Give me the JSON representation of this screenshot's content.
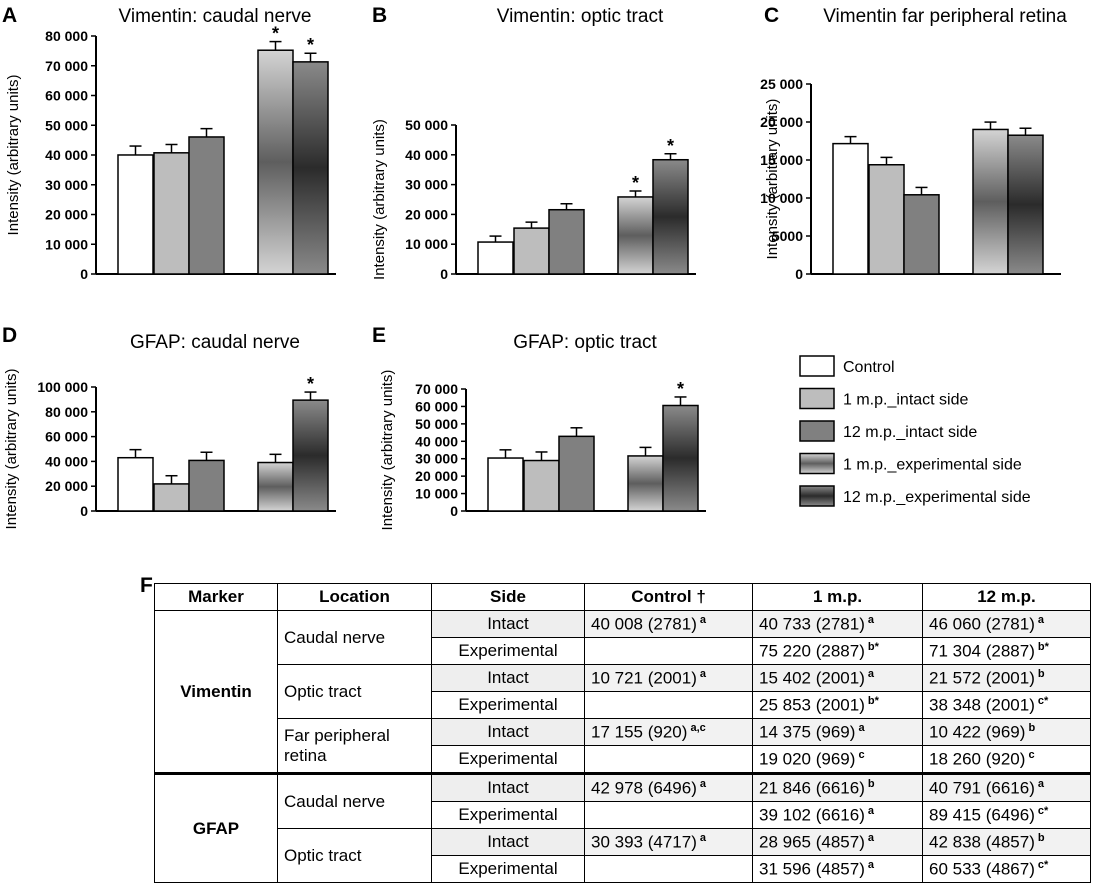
{
  "chart_data": [
    {
      "type": "bar",
      "panel": "A",
      "title": "Vimentin: caudal nerve",
      "ylabel": "Intensity (arbitrary units)",
      "ylim": [
        0,
        80000
      ],
      "yticks": [
        "0",
        "10 000",
        "20 000",
        "30 000",
        "40 000",
        "50 000",
        "60 000",
        "70 000",
        "80 000"
      ],
      "series": [
        {
          "name": "Control",
          "values": [
            40008
          ],
          "errors": [
            3000
          ]
        },
        {
          "name": "1 m.p._intact side",
          "values": [
            40733
          ],
          "errors": [
            2800
          ]
        },
        {
          "name": "12 m.p._intact side",
          "values": [
            46060
          ],
          "errors": [
            2800
          ]
        },
        {
          "name": "1 m.p._experimental side",
          "values": [
            75220
          ],
          "errors": [
            2900
          ],
          "star": true
        },
        {
          "name": "12 m.p._experimental side",
          "values": [
            71304
          ],
          "errors": [
            2900
          ],
          "star": true
        }
      ]
    },
    {
      "type": "bar",
      "panel": "B",
      "title": "Vimentin: optic tract",
      "ylabel": "Intensity (arbitrary units)",
      "ylim": [
        0,
        50000
      ],
      "yticks": [
        "0",
        "10 000",
        "20 000",
        "30 000",
        "40 000",
        "50 000"
      ],
      "series": [
        {
          "name": "Control",
          "values": [
            10721
          ],
          "errors": [
            2000
          ]
        },
        {
          "name": "1 m.p._intact side",
          "values": [
            15402
          ],
          "errors": [
            2000
          ]
        },
        {
          "name": "12 m.p._intact side",
          "values": [
            21572
          ],
          "errors": [
            2000
          ]
        },
        {
          "name": "1 m.p._experimental side",
          "values": [
            25853
          ],
          "errors": [
            2000
          ],
          "star": true
        },
        {
          "name": "12 m.p._experimental side",
          "values": [
            38348
          ],
          "errors": [
            2000
          ],
          "star": true
        }
      ]
    },
    {
      "type": "bar",
      "panel": "C",
      "title": "Vimentin far peripheral retina",
      "ylabel": "Intensity (arbitrary units)",
      "ylim": [
        0,
        25000
      ],
      "yticks": [
        "0",
        "5000",
        "10 000",
        "15 000",
        "20 000",
        "25 000"
      ],
      "series": [
        {
          "name": "Control",
          "values": [
            17155
          ],
          "errors": [
            920
          ]
        },
        {
          "name": "1 m.p._intact side",
          "values": [
            14375
          ],
          "errors": [
            969
          ]
        },
        {
          "name": "12 m.p._intact side",
          "values": [
            10422
          ],
          "errors": [
            969
          ]
        },
        {
          "name": "1 m.p._experimental side",
          "values": [
            19020
          ],
          "errors": [
            969
          ]
        },
        {
          "name": "12 m.p._experimental side",
          "values": [
            18260
          ],
          "errors": [
            920
          ]
        }
      ]
    },
    {
      "type": "bar",
      "panel": "D",
      "title": "GFAP: caudal nerve",
      "ylabel": "Intensity (arbitrary units)",
      "ylim": [
        0,
        100000
      ],
      "yticks": [
        "0",
        "20 000",
        "40 000",
        "60 000",
        "80 000",
        "100 000"
      ],
      "series": [
        {
          "name": "Control",
          "values": [
            42978
          ],
          "errors": [
            6500
          ]
        },
        {
          "name": "1 m.p._intact side",
          "values": [
            21846
          ],
          "errors": [
            6600
          ]
        },
        {
          "name": "12 m.p._intact side",
          "values": [
            40791
          ],
          "errors": [
            6600
          ]
        },
        {
          "name": "1 m.p._experimental side",
          "values": [
            39102
          ],
          "errors": [
            6600
          ]
        },
        {
          "name": "12 m.p._experimental side",
          "values": [
            89415
          ],
          "errors": [
            6500
          ],
          "star": true
        }
      ]
    },
    {
      "type": "bar",
      "panel": "E",
      "title": "GFAP: optic tract",
      "ylabel": "Intensity (arbitrary units)",
      "ylim": [
        0,
        70000
      ],
      "yticks": [
        "0",
        "10 000",
        "20 000",
        "30 000",
        "40 000",
        "50 000",
        "60 000",
        "70 000"
      ],
      "series": [
        {
          "name": "Control",
          "values": [
            30393
          ],
          "errors": [
            4700
          ]
        },
        {
          "name": "1 m.p._intact side",
          "values": [
            28965
          ],
          "errors": [
            4900
          ]
        },
        {
          "name": "12 m.p._intact side",
          "values": [
            42838
          ],
          "errors": [
            4900
          ]
        },
        {
          "name": "1 m.p._experimental side",
          "values": [
            31596
          ],
          "errors": [
            4900
          ]
        },
        {
          "name": "12 m.p._experimental side",
          "values": [
            60533
          ],
          "errors": [
            4900
          ],
          "star": true
        }
      ]
    }
  ],
  "legend": [
    {
      "label": "Control",
      "fill": "white"
    },
    {
      "label": "1 m.p._intact side",
      "fill": "light"
    },
    {
      "label": "12 m.p._intact side",
      "fill": "dark"
    },
    {
      "label": "1 m.p._experimental side",
      "fill": "grad-light"
    },
    {
      "label": "12 m.p._experimental side",
      "fill": "grad-dark"
    }
  ],
  "colors": {
    "white": "#ffffff",
    "light": "#bdbdbd",
    "dark": "#808080",
    "axis": "#000000"
  },
  "star_symbol": "*",
  "table": {
    "label": "F",
    "headers": [
      "Marker",
      "Location",
      "Side",
      "Control †",
      "1 m.p.",
      "12 m.p."
    ],
    "markers": [
      "Vimentin",
      "GFAP"
    ],
    "locations": [
      "Caudal nerve",
      "Optic tract",
      "Far peripheral retina",
      "Caudal nerve",
      "Optic tract"
    ],
    "sides": {
      "intact": "Intact",
      "experimental": "Experimental"
    },
    "rows": [
      {
        "control": "40 008 (2781)",
        "control_sup": "a",
        "m1": "40 733 (2781)",
        "m1_sup": "a",
        "m12": "46 060 (2781)",
        "m12_sup": "a"
      },
      {
        "control": "",
        "control_sup": "",
        "m1": "75 220 (2887)",
        "m1_sup": "b*",
        "m12": "71 304 (2887)",
        "m12_sup": "b*"
      },
      {
        "control": "10 721 (2001)",
        "control_sup": "a",
        "m1": "15 402 (2001)",
        "m1_sup": "a",
        "m12": "21 572 (2001)",
        "m12_sup": "b"
      },
      {
        "control": "",
        "control_sup": "",
        "m1": "25 853 (2001)",
        "m1_sup": "b*",
        "m12": "38 348 (2001)",
        "m12_sup": "c*"
      },
      {
        "control": "17 155 (920)",
        "control_sup": "a,c",
        "m1": "14 375 (969)",
        "m1_sup": "a",
        "m12": "10 422 (969)",
        "m12_sup": "b"
      },
      {
        "control": "",
        "control_sup": "",
        "m1": "19 020 (969)",
        "m1_sup": "c",
        "m12": "18 260 (920)",
        "m12_sup": "c"
      },
      {
        "control": "42 978 (6496)",
        "control_sup": "a",
        "m1": "21 846 (6616)",
        "m1_sup": "b",
        "m12": "40 791 (6616)",
        "m12_sup": "a"
      },
      {
        "control": "",
        "control_sup": "",
        "m1": "39 102 (6616)",
        "m1_sup": "a",
        "m12": "89 415 (6496)",
        "m12_sup": "c*"
      },
      {
        "control": "30 393 (4717)",
        "control_sup": "a",
        "m1": "28 965 (4857)",
        "m1_sup": "a",
        "m12": "42 838 (4857)",
        "m12_sup": "b"
      },
      {
        "control": "",
        "control_sup": "",
        "m1": "31 596 (4857)",
        "m1_sup": "a",
        "m12": "60 533 (4867)",
        "m12_sup": "c*"
      }
    ]
  }
}
